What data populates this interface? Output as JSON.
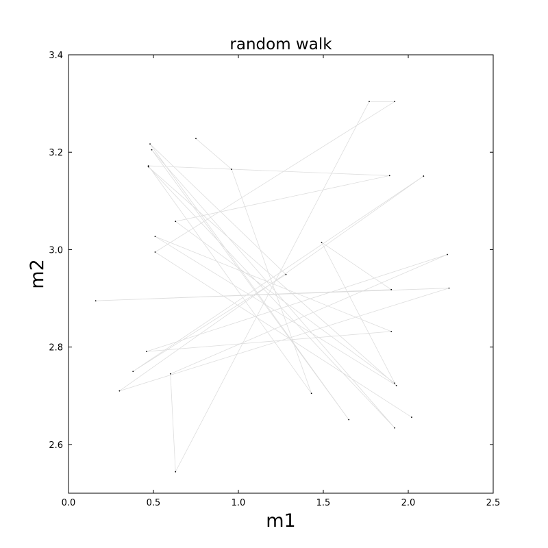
{
  "chart_data": {
    "type": "line",
    "title": "random walk",
    "xlabel": "m1",
    "ylabel": "m2",
    "xlim": [
      0.0,
      2.5
    ],
    "ylim": [
      2.5,
      3.4
    ],
    "xticks": [
      "0.0",
      "0.5",
      "1.0",
      "1.5",
      "2.0",
      "2.5"
    ],
    "yticks": [
      "2.6",
      "2.8",
      "3.0",
      "3.2",
      "3.4"
    ],
    "grid": false,
    "legend": "none",
    "line_color": "#dddddd",
    "marker_color": "#000000",
    "series": [
      {
        "points": [
          [
            0.75,
            3.228
          ],
          [
            0.96,
            3.165
          ],
          [
            1.43,
            2.705
          ],
          [
            0.47,
            3.172
          ],
          [
            1.89,
            3.152
          ],
          [
            0.63,
            3.058
          ],
          [
            1.92,
            2.726
          ],
          [
            1.49,
            3.015
          ],
          [
            1.9,
            2.918
          ],
          [
            0.16,
            2.895
          ],
          [
            2.24,
            2.921
          ],
          [
            0.3,
            2.71
          ],
          [
            2.09,
            3.151
          ],
          [
            0.38,
            2.75
          ],
          [
            1.28,
            2.949
          ],
          [
            0.48,
            3.217
          ],
          [
            1.65,
            2.651
          ],
          [
            0.49,
            3.205
          ],
          [
            1.92,
            2.634
          ],
          [
            0.47,
            3.17
          ],
          [
            1.93,
            2.721
          ],
          [
            0.51,
            3.027
          ],
          [
            1.9,
            2.832
          ],
          [
            0.46,
            2.791
          ],
          [
            2.23,
            2.99
          ],
          [
            0.6,
            2.745
          ],
          [
            0.63,
            2.544
          ],
          [
            1.77,
            3.304
          ],
          [
            1.92,
            3.304
          ],
          [
            0.51,
            2.995
          ],
          [
            2.02,
            2.656
          ]
        ]
      }
    ]
  }
}
